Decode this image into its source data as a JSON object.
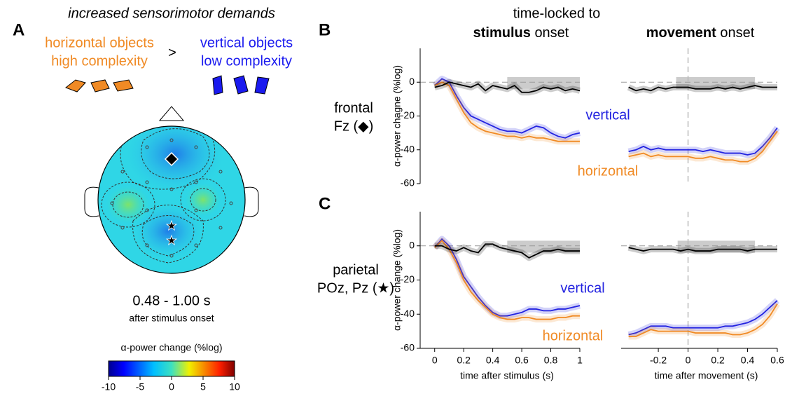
{
  "header": {
    "time_locked": "time-locked to",
    "stimulus_bold": "stimulus",
    "stimulus_rest": "onset",
    "movement_bold": "movement",
    "movement_rest": "onset"
  },
  "panels": {
    "a": "A",
    "b": "B",
    "c": "C"
  },
  "row_labels": {
    "frontal": "frontal",
    "frontal_sub": "Fz (◆)",
    "parietal": "parietal",
    "parietal_sub": "POz, Pz (★)"
  },
  "panel_a": {
    "title": "increased sensorimotor demands",
    "left_1": "horizontal objects",
    "left_2": "high complexity",
    "compare": ">",
    "right_1": "vertical objects",
    "right_2": "low complexity",
    "window": "0.48 - 1.00 s",
    "window_sub": "after stimulus onset",
    "colorbar_label": "α-power change (%log)",
    "colorbar_lim": [
      -10,
      10
    ],
    "colorbar_ticks": [
      -10,
      -5,
      0,
      5,
      10
    ]
  },
  "chart_data": [
    {
      "type": "line",
      "ylabel": "α-power chagne (%log)",
      "x": [
        0,
        0.05,
        0.1,
        0.15,
        0.2,
        0.25,
        0.3,
        0.35,
        0.4,
        0.45,
        0.5,
        0.55,
        0.6,
        0.65,
        0.7,
        0.75,
        0.8,
        0.85,
        0.9,
        0.95,
        1
      ],
      "xlim": [
        -0.1,
        1
      ],
      "ylim": [
        -60,
        20
      ],
      "yticks": [
        0,
        -20,
        -40,
        -60
      ],
      "hline": 0,
      "shaded_x": [
        0.5,
        1
      ],
      "shaded_y": [
        -4,
        3
      ],
      "series": [
        {
          "name": "vertical",
          "color": "#2323e0",
          "values": [
            -2,
            2,
            0,
            -8,
            -15,
            -20,
            -22,
            -24,
            -26,
            -28,
            -29,
            -29,
            -30,
            -28,
            -26,
            -27,
            -30,
            -32,
            -33,
            -31,
            -30
          ]
        },
        {
          "name": "horizontal",
          "color": "#f08a24",
          "values": [
            -2,
            0,
            -2,
            -10,
            -18,
            -24,
            -27,
            -29,
            -30,
            -31,
            -32,
            -32,
            -33,
            -32,
            -33,
            -33,
            -34,
            -35,
            -35,
            -35,
            -35
          ]
        },
        {
          "color": "#000000",
          "values": [
            -3,
            -2,
            0,
            -1,
            -2,
            -3,
            -1,
            -5,
            -2,
            -3,
            -4,
            -2,
            -6,
            -6,
            -5,
            -3,
            -4,
            -3,
            -5,
            -4,
            -5
          ]
        }
      ]
    },
    {
      "type": "line",
      "x": [
        -0.4,
        -0.35,
        -0.3,
        -0.25,
        -0.2,
        -0.15,
        -0.1,
        -0.05,
        0,
        0.05,
        0.1,
        0.15,
        0.2,
        0.25,
        0.3,
        0.35,
        0.4,
        0.45,
        0.5,
        0.55,
        0.6
      ],
      "xlim": [
        -0.45,
        0.6
      ],
      "ylim": [
        -60,
        20
      ],
      "hline": 0,
      "vline": 0,
      "shaded_x": [
        -0.08,
        0.45
      ],
      "shaded_y": [
        -4,
        3
      ],
      "series": [
        {
          "color": "#2323e0",
          "values": [
            -41,
            -40,
            -38,
            -40,
            -39,
            -40,
            -40,
            -40,
            -40,
            -40,
            -41,
            -40,
            -41,
            -42,
            -42,
            -42,
            -43,
            -42,
            -38,
            -33,
            -27
          ]
        },
        {
          "color": "#f08a24",
          "values": [
            -44,
            -43,
            -42,
            -44,
            -43,
            -44,
            -44,
            -44,
            -44,
            -45,
            -45,
            -44,
            -45,
            -46,
            -46,
            -47,
            -47,
            -45,
            -41,
            -35,
            -29
          ]
        },
        {
          "color": "#000000",
          "values": [
            -3,
            -5,
            -4,
            -5,
            -3,
            -4,
            -3,
            -3,
            -3,
            -4,
            -4,
            -4,
            -3,
            -4,
            -3,
            -4,
            -3,
            -2,
            -3,
            -3,
            -3
          ]
        }
      ]
    },
    {
      "type": "line",
      "ylabel": "α-power change (%log)",
      "xlabel": "time after stimulus (s)",
      "x": [
        0,
        0.05,
        0.1,
        0.15,
        0.2,
        0.25,
        0.3,
        0.35,
        0.4,
        0.45,
        0.5,
        0.55,
        0.6,
        0.65,
        0.7,
        0.75,
        0.8,
        0.85,
        0.9,
        0.95,
        1
      ],
      "xlim": [
        -0.1,
        1
      ],
      "ylim": [
        -60,
        20
      ],
      "xticks": [
        0,
        0.2,
        0.4,
        0.6,
        0.8,
        1
      ],
      "yticks": [
        0,
        -20,
        -40,
        -60
      ],
      "hline": 0,
      "shaded_x": [
        0.5,
        1
      ],
      "shaded_y": [
        -4,
        3
      ],
      "series": [
        {
          "name": "vertical",
          "color": "#2323e0",
          "values": [
            -1,
            4,
            0,
            -8,
            -18,
            -24,
            -30,
            -35,
            -39,
            -41,
            -41,
            -40,
            -39,
            -37,
            -37,
            -38,
            -38,
            -37,
            -37,
            -36,
            -35
          ]
        },
        {
          "name": "horizontal",
          "color": "#f08a24",
          "values": [
            -1,
            3,
            -2,
            -10,
            -20,
            -27,
            -32,
            -36,
            -40,
            -42,
            -43,
            -43,
            -42,
            -42,
            -43,
            -43,
            -43,
            -42,
            -42,
            -41,
            -41
          ]
        },
        {
          "color": "#000000",
          "values": [
            0,
            0,
            -2,
            -3,
            -1,
            -3,
            -4,
            1,
            1,
            -1,
            -2,
            -3,
            -4,
            -7,
            -5,
            -3,
            -3,
            -2,
            -3,
            -3,
            -3
          ]
        }
      ]
    },
    {
      "type": "line",
      "xlabel": "time after movement (s)",
      "x": [
        -0.4,
        -0.35,
        -0.3,
        -0.25,
        -0.2,
        -0.15,
        -0.1,
        -0.05,
        0,
        0.05,
        0.1,
        0.15,
        0.2,
        0.25,
        0.3,
        0.35,
        0.4,
        0.45,
        0.5,
        0.55,
        0.6
      ],
      "xlim": [
        -0.45,
        0.6
      ],
      "ylim": [
        -60,
        20
      ],
      "xticks": [
        -0.2,
        0,
        0.2,
        0.4,
        0.6
      ],
      "hline": 0,
      "vline": 0,
      "shaded_x": [
        -0.07,
        0.45
      ],
      "shaded_y": [
        -4,
        3
      ],
      "series": [
        {
          "color": "#2323e0",
          "values": [
            -52,
            -51,
            -49,
            -47,
            -47,
            -47,
            -48,
            -48,
            -48,
            -48,
            -48,
            -48,
            -48,
            -47,
            -47,
            -46,
            -45,
            -43,
            -40,
            -36,
            -32
          ]
        },
        {
          "color": "#f08a24",
          "values": [
            -53,
            -53,
            -51,
            -49,
            -50,
            -50,
            -50,
            -50,
            -50,
            -51,
            -51,
            -51,
            -51,
            -51,
            -52,
            -52,
            -51,
            -49,
            -46,
            -41,
            -34
          ]
        },
        {
          "color": "#000000",
          "values": [
            -1,
            -2,
            -3,
            -2,
            -2,
            -2,
            -2,
            -3,
            -2,
            -3,
            -3,
            -3,
            -2,
            -2,
            -2,
            -2,
            -3,
            -2,
            -2,
            -2,
            -2
          ]
        }
      ]
    }
  ]
}
